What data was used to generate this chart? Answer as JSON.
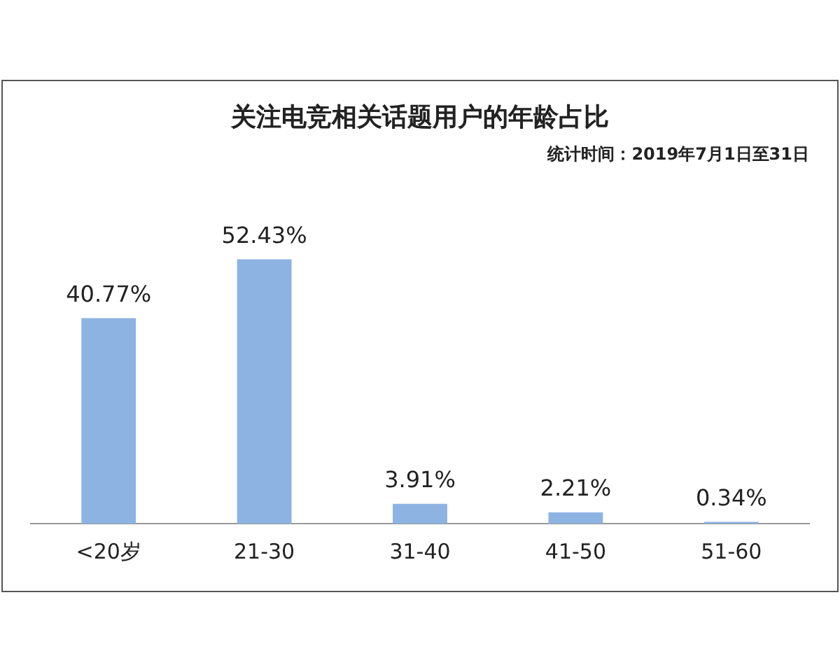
{
  "chart_data": {
    "type": "bar",
    "title": "关注电竞相关话题用户的年龄占比",
    "subtitle": "统计时间：2019年7月1日至31日",
    "categories": [
      "<20岁",
      "21-30",
      "31-40",
      "41-50",
      "51-60"
    ],
    "values": [
      40.77,
      52.43,
      3.91,
      2.21,
      0.34
    ],
    "value_labels": [
      "40.77%",
      "52.43%",
      "3.91%",
      "2.21%",
      "0.34%"
    ],
    "color": "#8db3e2",
    "grid": false,
    "legend": false
  }
}
